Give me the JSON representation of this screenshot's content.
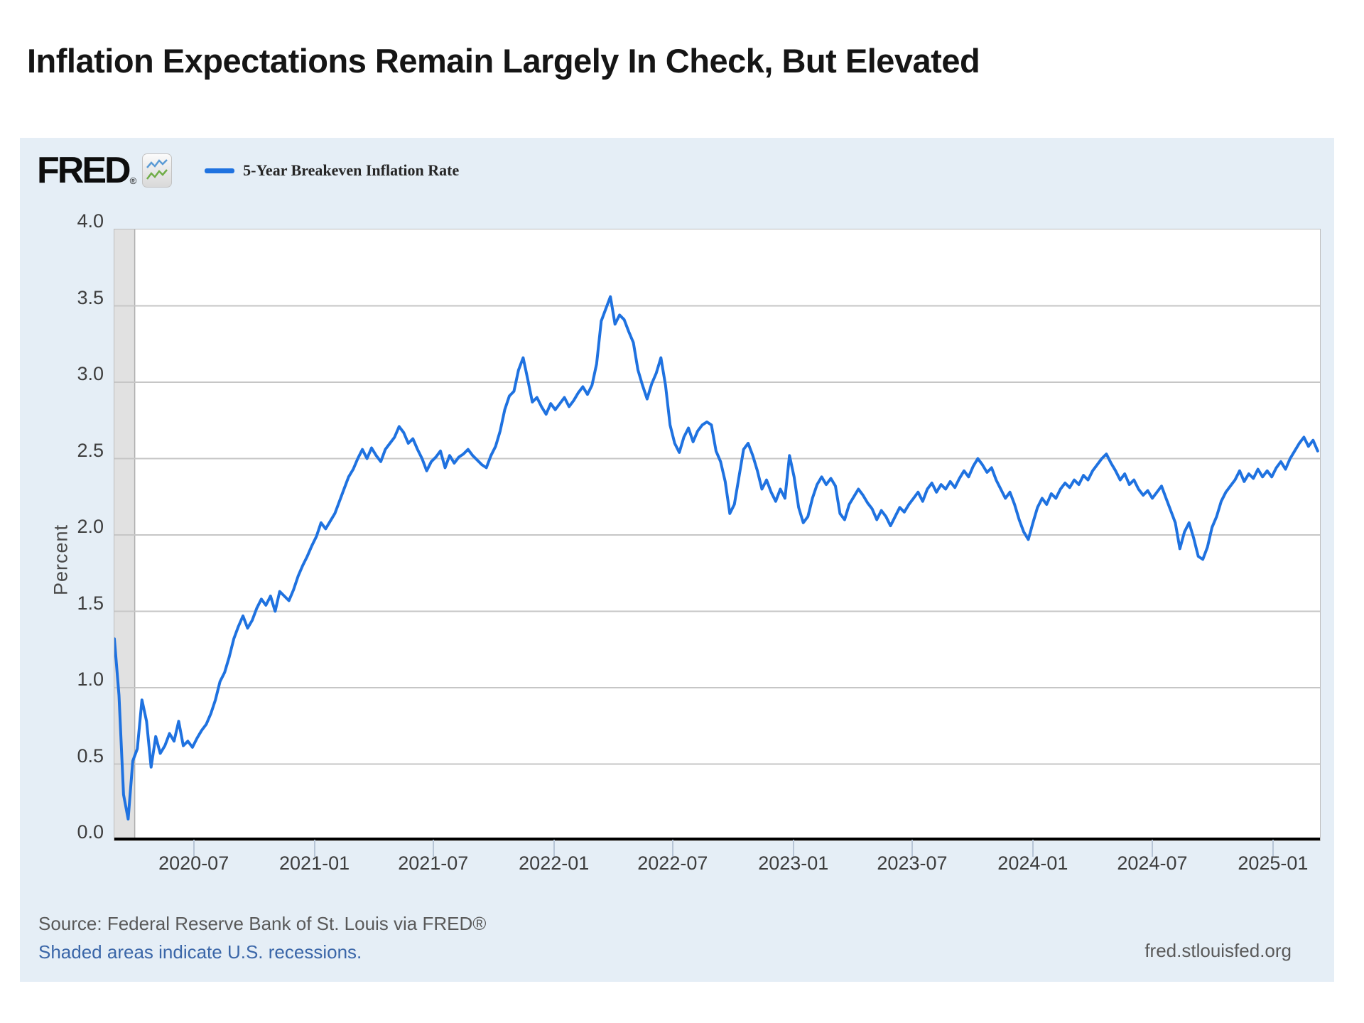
{
  "page": {
    "title": "Inflation Expectations Remain Largely In Check, But Elevated"
  },
  "brand": {
    "wordmark": "FRED",
    "registered_mark": "®",
    "icon": "sparkline-chart-icon"
  },
  "legend": {
    "label": "5-Year Breakeven Inflation Rate",
    "line_color": "#1f72e0"
  },
  "footer": {
    "source": "Source: Federal Reserve Bank of St. Louis via FRED®",
    "note": "Shaded areas indicate U.S. recessions.",
    "site": "fred.stlouisfed.org"
  },
  "colors": {
    "series_blue": "#1f72e0",
    "panel_background": "#e5eef6",
    "gridline": "#c6c6c6",
    "recession_band": "#e1e1e1",
    "recession_band_edge": "#aeaeae",
    "axis_black": "#000000"
  },
  "chart_data": {
    "type": "line",
    "title": "5-Year Breakeven Inflation Rate",
    "xlabel": "",
    "ylabel": "Percent",
    "ylim": [
      0.0,
      4.0
    ],
    "y_tick_labels": [
      "0.0",
      "0.5",
      "1.0",
      "1.5",
      "2.0",
      "2.5",
      "3.0",
      "3.5",
      "4.0"
    ],
    "grid": true,
    "legend_position": "top-left",
    "x_unit": "weekly observations starting 2020-03-01",
    "x_ticks": [
      {
        "label": "2020-07",
        "week": 17.43
      },
      {
        "label": "2021-01",
        "week": 43.71
      },
      {
        "label": "2021-07",
        "week": 69.57
      },
      {
        "label": "2022-01",
        "week": 95.86
      },
      {
        "label": "2022-07",
        "week": 121.71
      },
      {
        "label": "2023-01",
        "week": 148.0
      },
      {
        "label": "2023-07",
        "week": 173.86
      },
      {
        "label": "2024-01",
        "week": 200.14
      },
      {
        "label": "2024-07",
        "week": 226.14
      },
      {
        "label": "2025-01",
        "week": 252.43
      }
    ],
    "recession_band_weeks": [
      0,
      4.43
    ],
    "values": [
      1.32,
      0.95,
      0.3,
      0.14,
      0.52,
      0.6,
      0.92,
      0.78,
      0.48,
      0.68,
      0.57,
      0.62,
      0.7,
      0.65,
      0.78,
      0.62,
      0.65,
      0.61,
      0.67,
      0.72,
      0.76,
      0.83,
      0.92,
      1.04,
      1.1,
      1.2,
      1.32,
      1.4,
      1.47,
      1.39,
      1.44,
      1.52,
      1.58,
      1.54,
      1.6,
      1.5,
      1.63,
      1.6,
      1.57,
      1.64,
      1.73,
      1.8,
      1.86,
      1.93,
      1.99,
      2.08,
      2.04,
      2.09,
      2.14,
      2.22,
      2.3,
      2.38,
      2.43,
      2.5,
      2.56,
      2.5,
      2.57,
      2.52,
      2.48,
      2.56,
      2.6,
      2.64,
      2.71,
      2.67,
      2.6,
      2.63,
      2.56,
      2.5,
      2.42,
      2.48,
      2.51,
      2.55,
      2.44,
      2.52,
      2.47,
      2.51,
      2.53,
      2.56,
      2.52,
      2.49,
      2.46,
      2.44,
      2.52,
      2.58,
      2.68,
      2.82,
      2.91,
      2.94,
      3.08,
      3.16,
      3.02,
      2.87,
      2.9,
      2.84,
      2.79,
      2.86,
      2.82,
      2.86,
      2.9,
      2.84,
      2.88,
      2.93,
      2.97,
      2.92,
      2.98,
      3.12,
      3.4,
      3.48,
      3.56,
      3.38,
      3.44,
      3.41,
      3.33,
      3.26,
      3.08,
      2.98,
      2.89,
      2.99,
      3.06,
      3.16,
      2.98,
      2.72,
      2.6,
      2.54,
      2.64,
      2.7,
      2.61,
      2.68,
      2.72,
      2.74,
      2.72,
      2.55,
      2.48,
      2.35,
      2.14,
      2.2,
      2.38,
      2.56,
      2.6,
      2.52,
      2.42,
      2.3,
      2.36,
      2.28,
      2.22,
      2.3,
      2.24,
      2.52,
      2.38,
      2.18,
      2.08,
      2.12,
      2.24,
      2.33,
      2.38,
      2.33,
      2.37,
      2.32,
      2.14,
      2.1,
      2.2,
      2.25,
      2.3,
      2.26,
      2.21,
      2.17,
      2.1,
      2.16,
      2.12,
      2.06,
      2.12,
      2.18,
      2.15,
      2.2,
      2.24,
      2.28,
      2.22,
      2.3,
      2.34,
      2.28,
      2.33,
      2.3,
      2.35,
      2.31,
      2.37,
      2.42,
      2.38,
      2.45,
      2.5,
      2.46,
      2.41,
      2.44,
      2.36,
      2.3,
      2.24,
      2.28,
      2.2,
      2.1,
      2.02,
      1.97,
      2.08,
      2.18,
      2.24,
      2.2,
      2.27,
      2.24,
      2.3,
      2.34,
      2.31,
      2.36,
      2.33,
      2.39,
      2.36,
      2.42,
      2.46,
      2.5,
      2.53,
      2.47,
      2.42,
      2.36,
      2.4,
      2.33,
      2.36,
      2.3,
      2.26,
      2.29,
      2.24,
      2.28,
      2.32,
      2.24,
      2.16,
      2.08,
      1.91,
      2.02,
      2.08,
      1.98,
      1.86,
      1.84,
      1.92,
      2.05,
      2.12,
      2.22,
      2.28,
      2.32,
      2.36,
      2.42,
      2.35,
      2.4,
      2.37,
      2.43,
      2.38,
      2.42,
      2.38,
      2.44,
      2.48,
      2.43,
      2.5,
      2.55,
      2.6,
      2.64,
      2.58,
      2.62,
      2.55
    ]
  }
}
